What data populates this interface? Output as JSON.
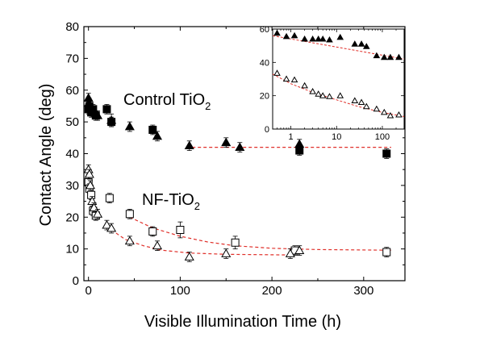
{
  "chart_data": {
    "type": "scatter",
    "xlabel": "Visible Illumination Time (h)",
    "ylabel": "Contact Angle (deg)",
    "xlim": [
      -5,
      345
    ],
    "ylim": [
      0,
      80
    ],
    "xticks": [
      0,
      100,
      200,
      300
    ],
    "yticks": [
      0,
      10,
      20,
      30,
      40,
      50,
      60,
      70,
      80
    ],
    "annotations": {
      "control": {
        "text": "Control TiO",
        "subscript": "2"
      },
      "nf": {
        "text": "NF-TiO",
        "subscript": "2"
      }
    },
    "series": [
      {
        "marker": "filled-square",
        "points": [
          [
            0,
            54
          ],
          [
            1,
            55
          ],
          [
            3,
            53
          ],
          [
            5,
            54
          ],
          [
            8,
            52
          ],
          [
            20,
            54
          ],
          [
            25,
            50
          ],
          [
            70,
            47.5
          ],
          [
            230,
            41
          ],
          [
            325,
            40
          ]
        ],
        "errors": [
          1.5,
          1.5,
          1.5,
          1.5,
          1.5,
          1.5,
          1.5,
          1.5,
          1.5,
          1.5
        ]
      },
      {
        "marker": "filled-triangle",
        "points": [
          [
            0,
            57.5
          ],
          [
            0.5,
            56
          ],
          [
            2,
            55
          ],
          [
            4,
            53
          ],
          [
            10,
            52
          ],
          [
            25,
            50.5
          ],
          [
            45,
            48.5
          ],
          [
            75,
            45.5
          ],
          [
            110,
            42.5
          ],
          [
            150,
            43.5
          ],
          [
            165,
            42
          ],
          [
            230,
            43
          ]
        ],
        "errors": [
          1.5,
          1.5,
          1.5,
          1.5,
          1.5,
          2,
          1.5,
          1.5,
          1.5,
          1.5,
          1.5,
          1.5
        ]
      },
      {
        "marker": "open-square",
        "points": [
          [
            0,
            31
          ],
          [
            1,
            29
          ],
          [
            3,
            27
          ],
          [
            5,
            22
          ],
          [
            8,
            20.5
          ],
          [
            23,
            26
          ],
          [
            45,
            21
          ],
          [
            70,
            15.5
          ],
          [
            100,
            16
          ],
          [
            160,
            12
          ],
          [
            225,
            9.5
          ],
          [
            325,
            9
          ]
        ],
        "errors": [
          1.5,
          1.5,
          1.5,
          1.5,
          1.5,
          1.5,
          1.5,
          1.5,
          2.5,
          2,
          1.5,
          1.5
        ]
      },
      {
        "marker": "open-triangle",
        "points": [
          [
            0,
            35
          ],
          [
            1,
            33.5
          ],
          [
            2,
            30
          ],
          [
            4,
            25
          ],
          [
            6,
            23
          ],
          [
            10,
            21
          ],
          [
            20,
            17.5
          ],
          [
            25,
            16.5
          ],
          [
            45,
            12.5
          ],
          [
            75,
            11
          ],
          [
            110,
            7.5
          ],
          [
            150,
            8.5
          ],
          [
            220,
            8.5
          ],
          [
            230,
            9.5
          ]
        ],
        "errors": [
          1.5,
          1.5,
          1.5,
          1.5,
          1.5,
          1.5,
          1.5,
          1.5,
          1.5,
          1.5,
          1.5,
          1.5,
          1.5,
          1.5
        ]
      }
    ],
    "fit_curves": [
      {
        "style": "red-dashed",
        "points": [
          [
            113,
            42
          ],
          [
            330,
            42
          ]
        ]
      },
      {
        "style": "red-dashed",
        "points": [
          [
            45,
            20
          ],
          [
            70,
            16.6
          ],
          [
            100,
            14
          ],
          [
            130,
            12.2
          ],
          [
            160,
            11
          ],
          [
            200,
            10.2
          ],
          [
            250,
            9.8
          ],
          [
            330,
            9.6
          ]
        ]
      },
      {
        "style": "red-dashed",
        "points": [
          [
            20,
            17
          ],
          [
            40,
            13
          ],
          [
            60,
            11
          ],
          [
            80,
            9.6
          ],
          [
            110,
            8.7
          ],
          [
            150,
            8.3
          ],
          [
            220,
            8.1
          ]
        ]
      }
    ],
    "inset": {
      "xscale": "log",
      "xlim": [
        0.4,
        300
      ],
      "ylim": [
        0,
        60
      ],
      "xticks": [
        1,
        10,
        100
      ],
      "yticks": [
        0,
        20,
        40,
        60
      ],
      "series": [
        {
          "marker": "filled-triangle",
          "points": [
            [
              0.5,
              57.5
            ],
            [
              0.8,
              55.5
            ],
            [
              1.2,
              56
            ],
            [
              2,
              54
            ],
            [
              3,
              54
            ],
            [
              4,
              54
            ],
            [
              5,
              54
            ],
            [
              7,
              53.5
            ],
            [
              12,
              55
            ],
            [
              25,
              51
            ],
            [
              35,
              51
            ],
            [
              45,
              49.5
            ],
            [
              75,
              44
            ],
            [
              110,
              43
            ],
            [
              150,
              43
            ],
            [
              230,
              43
            ]
          ]
        },
        {
          "marker": "open-triangle",
          "points": [
            [
              0.5,
              33.5
            ],
            [
              0.8,
              30
            ],
            [
              1.2,
              29.5
            ],
            [
              2,
              26
            ],
            [
              3,
              22.5
            ],
            [
              4,
              21
            ],
            [
              5,
              20
            ],
            [
              7,
              19.5
            ],
            [
              12,
              20
            ],
            [
              25,
              17
            ],
            [
              35,
              16
            ],
            [
              45,
              13.5
            ],
            [
              75,
              12
            ],
            [
              110,
              10
            ],
            [
              150,
              8
            ],
            [
              230,
              8.5
            ]
          ]
        }
      ],
      "fit_curves": [
        {
          "style": "red-dashed",
          "points": [
            [
              0.4,
              56
            ],
            [
              300,
              42
            ]
          ]
        },
        {
          "style": "red-dashed",
          "points": [
            [
              0.4,
              33
            ],
            [
              1,
              27.2
            ],
            [
              3,
              22
            ],
            [
              10,
              17.5
            ],
            [
              30,
              13.5
            ],
            [
              100,
              10
            ],
            [
              300,
              7.5
            ]
          ]
        }
      ]
    }
  }
}
